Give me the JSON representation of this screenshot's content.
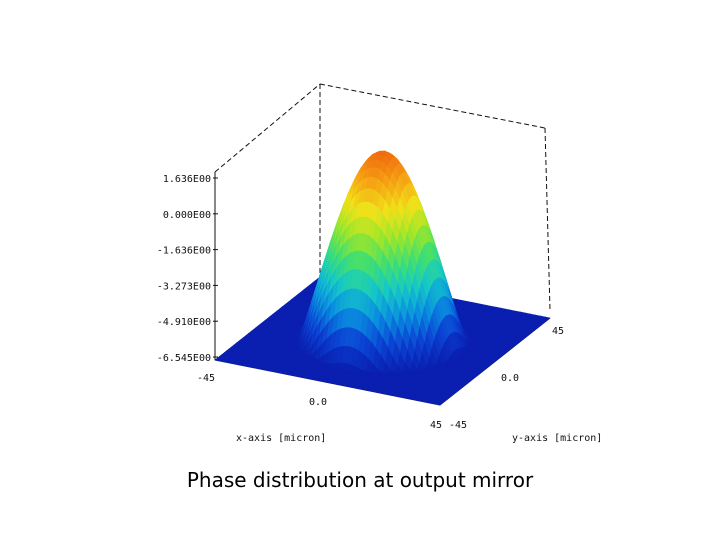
{
  "caption": "Phase distribution at output mirror",
  "colors": {
    "colormap": [
      "#0a1fb0",
      "#0b44d4",
      "#0a8fe0",
      "#15c8c8",
      "#3fdf72",
      "#9ee62a",
      "#f0e21a",
      "#f6a514",
      "#f06a0e"
    ],
    "frame": "#111111"
  },
  "chart_data": {
    "type": "surface3d",
    "title": "",
    "xlabel": "x-axis [micron]",
    "ylabel": "y-axis [micron]",
    "zlabel": "",
    "x_ticks": [
      "-45",
      "0.0",
      "45"
    ],
    "y_ticks": [
      "-45",
      "0.0",
      "45"
    ],
    "z_ticks": [
      "1.636E00",
      "0.000E00",
      "-1.636E00",
      "-3.273E00",
      "-4.910E00",
      "-6.545E00"
    ],
    "xlim": [
      -45,
      45
    ],
    "ylim": [
      -45,
      45
    ],
    "zlim": [
      -6.545,
      1.636
    ],
    "surface": {
      "description_shape": "radially symmetric dome",
      "peak_value": 1.6,
      "edge_value": -6.545,
      "dome_radius": 30
    },
    "grid": false
  }
}
